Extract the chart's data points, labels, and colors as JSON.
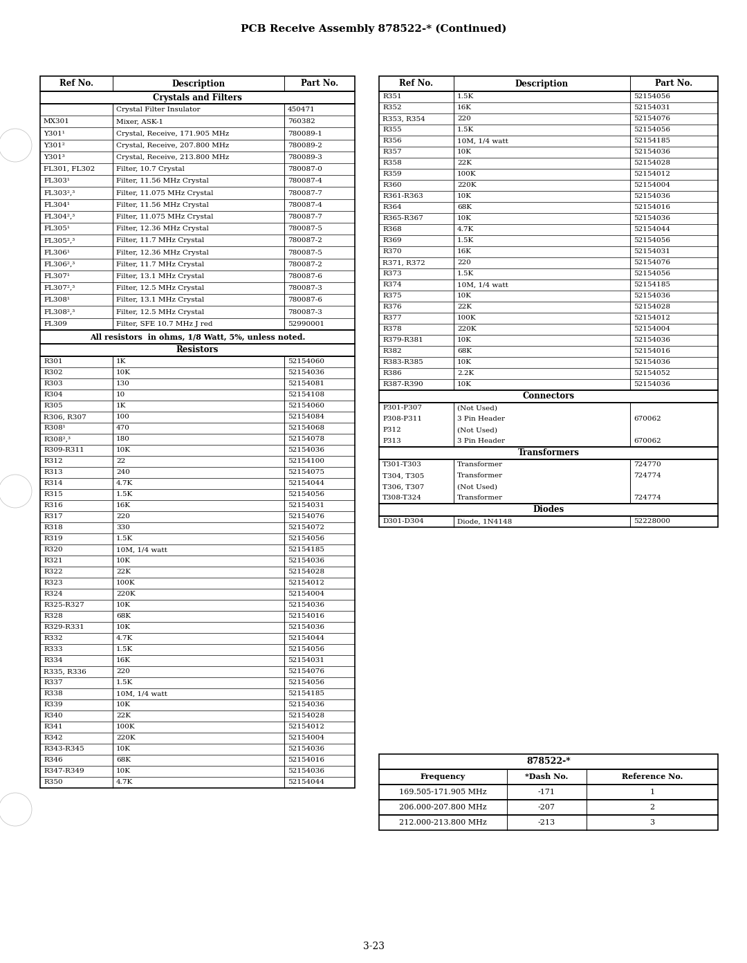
{
  "title": "PCB Receive Assembly 878522-* (Continued)",
  "page_number": "3-23",
  "background_color": "#ffffff",
  "left_table": {
    "headers": [
      "Ref No.",
      "Description",
      "Part No."
    ],
    "section1_title": "Crystals and Filters",
    "section1_rows": [
      [
        "",
        "Crystal Filter Insulator",
        "450471"
      ],
      [
        "MX301",
        "Mixer, ASK-1",
        "760382"
      ],
      [
        "Y301¹",
        "Crystal, Receive, 171.905 MHz",
        "780089-1"
      ],
      [
        "Y301²",
        "Crystal, Receive, 207.800 MHz",
        "780089-2"
      ],
      [
        "Y301³",
        "Crystal, Receive, 213.800 MHz",
        "780089-3"
      ],
      [
        "FL301, FL302",
        "Filter, 10.7 Crystal",
        "780087-0"
      ],
      [
        "FL303¹",
        "Filter, 11.56 MHz Crystal",
        "780087-4"
      ],
      [
        "FL303²,³",
        "Filter, 11.075 MHz Crystal",
        "780087-7"
      ],
      [
        "FL304¹",
        "Filter, 11.56 MHz Crystal",
        "780087-4"
      ],
      [
        "FL304²,³",
        "Filter, 11.075 MHz Crystal",
        "780087-7"
      ],
      [
        "FL305¹",
        "Filter, 12.36 MHz Crystal",
        "780087-5"
      ],
      [
        "FL305²,³",
        "Filter, 11.7 MHz Crystal",
        "780087-2"
      ],
      [
        "FL306¹",
        "Filter, 12.36 MHz Crystal",
        "780087-5"
      ],
      [
        "FL306²,³",
        "Filter, 11.7 MHz Crystal",
        "780087-2"
      ],
      [
        "FL307¹",
        "Filter, 13.1 MHz Crystal",
        "780087-6"
      ],
      [
        "FL307²,³",
        "Filter, 12.5 MHz Crystal",
        "780087-3"
      ],
      [
        "FL308¹",
        "Filter, 13.1 MHz Crystal",
        "780087-6"
      ],
      [
        "FL308²,³",
        "Filter, 12.5 MHz Crystal",
        "780087-3"
      ],
      [
        "FL309",
        "Filter, SFE 10.7 MHz J red",
        "52990001"
      ]
    ],
    "note": "All resistors  in ohms, 1/8 Watt, 5%, unless noted.",
    "section2_title": "Resistors",
    "section2_rows": [
      [
        "R301",
        "1K",
        "52154060"
      ],
      [
        "R302",
        "10K",
        "52154036"
      ],
      [
        "R303",
        "130",
        "52154081"
      ],
      [
        "R304",
        "10",
        "52154108"
      ],
      [
        "R305",
        "1K",
        "52154060"
      ],
      [
        "R306, R307",
        "100",
        "52154084"
      ],
      [
        "R308¹",
        "470",
        "52154068"
      ],
      [
        "R308²,³",
        "180",
        "52154078"
      ],
      [
        "R309-R311",
        "10K",
        "52154036"
      ],
      [
        "R312",
        "22",
        "52154100"
      ],
      [
        "R313",
        "240",
        "52154075"
      ],
      [
        "R314",
        "4.7K",
        "52154044"
      ],
      [
        "R315",
        "1.5K",
        "52154056"
      ],
      [
        "R316",
        "16K",
        "52154031"
      ],
      [
        "R317",
        "220",
        "52154076"
      ],
      [
        "R318",
        "330",
        "52154072"
      ],
      [
        "R319",
        "1.5K",
        "52154056"
      ],
      [
        "R320",
        "10M, 1/4 watt",
        "52154185"
      ],
      [
        "R321",
        "10K",
        "52154036"
      ],
      [
        "R322",
        "22K",
        "52154028"
      ],
      [
        "R323",
        "100K",
        "52154012"
      ],
      [
        "R324",
        "220K",
        "52154004"
      ],
      [
        "R325-R327",
        "10K",
        "52154036"
      ],
      [
        "R328",
        "68K",
        "52154016"
      ],
      [
        "R329-R331",
        "10K",
        "52154036"
      ],
      [
        "R332",
        "4.7K",
        "52154044"
      ],
      [
        "R333",
        "1.5K",
        "52154056"
      ],
      [
        "R334",
        "16K",
        "52154031"
      ],
      [
        "R335, R336",
        "220",
        "52154076"
      ],
      [
        "R337",
        "1.5K",
        "52154056"
      ],
      [
        "R338",
        "10M, 1/4 watt",
        "52154185"
      ],
      [
        "R339",
        "10K",
        "52154036"
      ],
      [
        "R340",
        "22K",
        "52154028"
      ],
      [
        "R341",
        "100K",
        "52154012"
      ],
      [
        "R342",
        "220K",
        "52154004"
      ],
      [
        "R343-R345",
        "10K",
        "52154036"
      ],
      [
        "R346",
        "68K",
        "52154016"
      ],
      [
        "R347-R349",
        "10K",
        "52154036"
      ],
      [
        "R350",
        "4.7K",
        "52154044"
      ]
    ]
  },
  "right_table": {
    "headers": [
      "Ref No.",
      "Description",
      "Part No."
    ],
    "resistors_rows": [
      [
        "R351",
        "1.5K",
        "52154056"
      ],
      [
        "R352",
        "16K",
        "52154031"
      ],
      [
        "R353, R354",
        "220",
        "52154076"
      ],
      [
        "R355",
        "1.5K",
        "52154056"
      ],
      [
        "R356",
        "10M, 1/4 watt",
        "52154185"
      ],
      [
        "R357",
        "10K",
        "52154036"
      ],
      [
        "R358",
        "22K",
        "52154028"
      ],
      [
        "R359",
        "100K",
        "52154012"
      ],
      [
        "R360",
        "220K",
        "52154004"
      ],
      [
        "R361-R363",
        "10K",
        "52154036"
      ],
      [
        "R364",
        "68K",
        "52154016"
      ],
      [
        "R365-R367",
        "10K",
        "52154036"
      ],
      [
        "R368",
        "4.7K",
        "52154044"
      ],
      [
        "R369",
        "1.5K",
        "52154056"
      ],
      [
        "R370",
        "16K",
        "52154031"
      ],
      [
        "R371, R372",
        "220",
        "52154076"
      ],
      [
        "R373",
        "1.5K",
        "52154056"
      ],
      [
        "R374",
        "10M, 1/4 watt",
        "52154185"
      ],
      [
        "R375",
        "10K",
        "52154036"
      ],
      [
        "R376",
        "22K",
        "52154028"
      ],
      [
        "R377",
        "100K",
        "52154012"
      ],
      [
        "R378",
        "220K",
        "52154004"
      ],
      [
        "R379-R381",
        "10K",
        "52154036"
      ],
      [
        "R382",
        "68K",
        "52154016"
      ],
      [
        "R383-R385",
        "10K",
        "52154036"
      ],
      [
        "R386",
        "2.2K",
        "52154052"
      ],
      [
        "R387-R390",
        "10K",
        "52154036"
      ]
    ],
    "connectors_title": "Connectors",
    "connectors_block": {
      "refs": [
        "P301-P307",
        "P308-P311",
        "P312",
        "P313"
      ],
      "descs": [
        "(Not Used)",
        "3 Pin Header",
        "(Not Used)",
        "3 Pin Header"
      ],
      "parts": [
        "",
        "670062",
        "",
        "670062"
      ]
    },
    "transformers_title": "Transformers",
    "transformers_block": {
      "refs": [
        "T301-T303",
        "T304, T305",
        "T306, T307",
        "T308-T324"
      ],
      "descs": [
        "Transformer",
        "Transformer",
        "(Not Used)",
        "Transformer"
      ],
      "parts": [
        "724770",
        "724774",
        "",
        "724774"
      ]
    },
    "diodes_title": "Diodes",
    "diodes_block": {
      "refs": [
        "D301-D304"
      ],
      "descs": [
        "Diode, 1N4148"
      ],
      "parts": [
        "52228000"
      ]
    }
  },
  "bottom_table": {
    "title": "878522-*",
    "headers": [
      "Frequency",
      "*Dash No.",
      "Reference No."
    ],
    "rows": [
      [
        "169.505-171.905 MHz",
        "-171",
        "1"
      ],
      [
        "206.000-207.800 MHz",
        "-207",
        "2"
      ],
      [
        "212.000-213.800 MHz",
        "-213",
        "3"
      ]
    ]
  }
}
